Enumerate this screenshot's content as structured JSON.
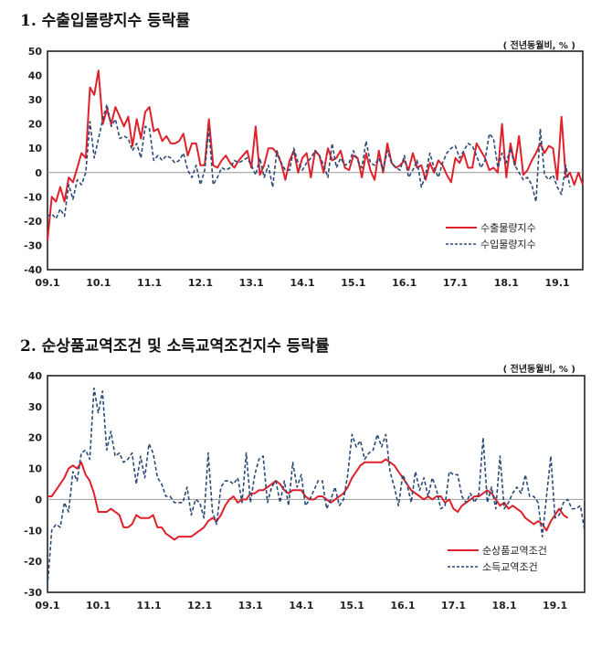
{
  "chart_data": [
    {
      "type": "line",
      "title": "1. 수출입물량지수 등락률",
      "unit": "( 전년동월비, % )",
      "xlabel": "",
      "ylabel": "",
      "ylim": [
        -40,
        50
      ],
      "yticks": [
        50,
        40,
        30,
        20,
        10,
        0,
        -10,
        -20,
        -30,
        -40
      ],
      "xtick_labels": [
        "09.1",
        "10.1",
        "11.1",
        "12.1",
        "13.1",
        "14.1",
        "15.1",
        "16.1",
        "17.1",
        "18.1",
        "19.1"
      ],
      "x_start": "09.1",
      "legend_position": "bottom-right",
      "series": [
        {
          "name": "수출물량지수",
          "color": "#e0202a",
          "style": "solid",
          "values": [
            -28,
            -10,
            -12,
            -6,
            -12,
            -2,
            -4,
            2,
            8,
            6,
            35,
            32,
            42,
            20,
            26,
            20,
            27,
            23,
            19,
            23,
            11,
            22,
            14,
            25,
            27,
            17,
            18,
            13,
            15,
            12,
            12,
            13,
            16,
            7,
            12,
            12,
            3,
            3,
            22,
            3,
            2,
            5,
            7,
            4,
            2,
            5,
            7,
            9,
            2,
            19,
            -1,
            3,
            10,
            10,
            8,
            4,
            -3,
            5,
            9,
            0,
            6,
            8,
            -2,
            9,
            7,
            0,
            10,
            5,
            6,
            9,
            2,
            1,
            7,
            6,
            -2,
            8,
            1,
            -3,
            9,
            0,
            12,
            4,
            2,
            3,
            5,
            1,
            8,
            2,
            3,
            -3,
            4,
            0,
            5,
            3,
            -1,
            -4,
            6,
            4,
            8,
            2,
            2,
            12,
            9,
            6,
            1,
            2,
            0,
            20,
            -2,
            12,
            3,
            15,
            -1,
            1,
            5,
            8,
            12,
            8,
            11,
            10,
            -3,
            23,
            -2,
            0,
            -5,
            0,
            -5
          ]
        },
        {
          "name": "수입물량지수",
          "color": "#2a4a78",
          "style": "dashed",
          "values": [
            -18,
            -17,
            -19,
            -15,
            -18,
            -5,
            -11,
            -3,
            -5,
            0,
            21,
            6,
            14,
            22,
            28,
            19,
            22,
            14,
            15,
            14,
            9,
            12,
            6,
            19,
            18,
            5,
            7,
            5,
            7,
            6,
            4,
            5,
            8,
            1,
            -2,
            3,
            -5,
            1,
            18,
            -5,
            -2,
            2,
            1,
            2,
            5,
            4,
            5,
            6,
            3,
            -1,
            6,
            -2,
            3,
            -6,
            9,
            4,
            1,
            1,
            10,
            4,
            1,
            4,
            6,
            9,
            7,
            3,
            -2,
            12,
            2,
            6,
            3,
            4,
            9,
            5,
            2,
            13,
            4,
            3,
            6,
            1,
            9,
            4,
            2,
            1,
            7,
            -2,
            1,
            5,
            -6,
            -1,
            8,
            2,
            -2,
            4,
            8,
            10,
            11,
            6,
            9,
            12,
            11,
            7,
            2,
            5,
            16,
            14,
            2,
            8,
            4,
            10,
            3,
            0,
            -3,
            -2,
            -5,
            -12,
            18,
            -1,
            -3,
            -1,
            -6,
            -9,
            3,
            -6
          ]
        }
      ]
    },
    {
      "type": "line",
      "title": "2. 순상품교역조건 및 소득교역조건지수 등락률",
      "unit": "( 전년동월비, % )",
      "xlabel": "",
      "ylabel": "",
      "ylim": [
        -30,
        40
      ],
      "yticks": [
        40,
        30,
        20,
        10,
        0,
        -10,
        -20,
        -30
      ],
      "xtick_labels": [
        "09.1",
        "10.1",
        "11.1",
        "12.1",
        "13.1",
        "14.1",
        "15.1",
        "16.1",
        "17.1",
        "18.1",
        "19.1"
      ],
      "x_start": "09.1",
      "legend_position": "bottom-right",
      "series": [
        {
          "name": "순상품교역조건",
          "color": "#e0202a",
          "style": "solid",
          "values": [
            1,
            1,
            3,
            5,
            7,
            10,
            11,
            10,
            12,
            8,
            6,
            2,
            -4,
            -4,
            -4,
            -3,
            -4,
            -5,
            -9,
            -9,
            -8,
            -5,
            -6,
            -6,
            -6,
            -5,
            -9,
            -9,
            -11,
            -12,
            -13,
            -12,
            -12,
            -12,
            -12,
            -11,
            -10,
            -9,
            -7,
            -6,
            -7,
            -5,
            -2,
            0,
            1,
            -1,
            0,
            0,
            2,
            2,
            3,
            3,
            4,
            5,
            6,
            5,
            3,
            2,
            3,
            3,
            3,
            1,
            0,
            0,
            1,
            1,
            0,
            -1,
            0,
            1,
            2,
            4,
            7,
            9,
            11,
            12,
            12,
            12,
            12,
            12,
            13,
            12,
            11,
            9,
            7,
            5,
            3,
            2,
            1,
            0,
            1,
            0,
            1,
            1,
            -1,
            0,
            -3,
            -4,
            -2,
            -1,
            0,
            1,
            1,
            2,
            3,
            2,
            0,
            -2,
            -1,
            -3,
            -2,
            -3,
            -4,
            -6,
            -7,
            -8,
            -7,
            -8,
            -10,
            -7,
            -5,
            -3,
            -5,
            -6
          ]
        },
        {
          "name": "소득교역조건",
          "color": "#2a4a78",
          "style": "dashed",
          "values": [
            -28,
            -10,
            -8,
            -9,
            -1,
            -4,
            9,
            6,
            15,
            16,
            13,
            36,
            28,
            35,
            16,
            22,
            14,
            15,
            12,
            13,
            15,
            5,
            14,
            7,
            18,
            15,
            7,
            5,
            1,
            1,
            -1,
            -1,
            -1,
            4,
            -5,
            0,
            -1,
            -6,
            15,
            -4,
            -8,
            4,
            6,
            6,
            5,
            7,
            -1,
            15,
            -1,
            8,
            13,
            14,
            -1,
            4,
            6,
            -1,
            6,
            -2,
            12,
            4,
            8,
            -2,
            0,
            3,
            6,
            6,
            -3,
            0,
            4,
            -2,
            0,
            8,
            21,
            17,
            19,
            13,
            15,
            16,
            21,
            17,
            21,
            9,
            4,
            -2,
            8,
            5,
            -1,
            9,
            3,
            7,
            1,
            7,
            3,
            -3,
            -2,
            9,
            8,
            8,
            1,
            -1,
            2,
            -1,
            2,
            20,
            -1,
            4,
            -3,
            14,
            -3,
            -1,
            2,
            4,
            2,
            8,
            1,
            1,
            -1,
            -12,
            1,
            14,
            -6,
            -5,
            -1,
            0,
            -3,
            -3,
            -2,
            -10
          ]
        }
      ]
    }
  ]
}
